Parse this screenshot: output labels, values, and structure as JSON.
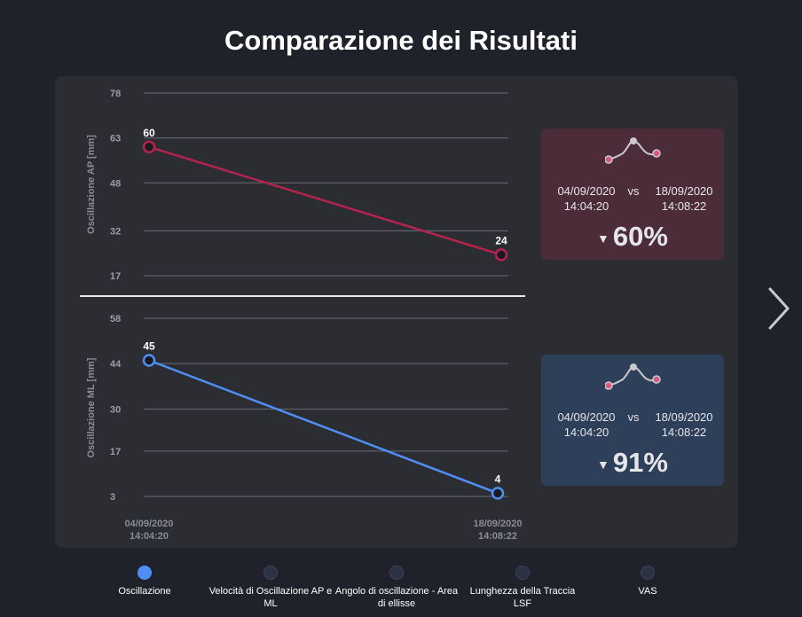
{
  "title": "Comparazione dei Risultati",
  "chart_data": [
    {
      "type": "line",
      "ylabel": "Oscillazione AP [mm]",
      "yticks": [
        78,
        63,
        48,
        32,
        17
      ],
      "ylim": [
        17,
        78
      ],
      "x": [
        "04/09/2020 14:04:20",
        "18/09/2020 14:08:22"
      ],
      "values": [
        60,
        24
      ],
      "data_labels": [
        "60",
        "24"
      ],
      "color": "#b5234d",
      "grid": true
    },
    {
      "type": "line",
      "ylabel": "Oscillazione ML [mm]",
      "yticks": [
        58,
        44,
        30,
        17,
        3
      ],
      "ylim": [
        3,
        58
      ],
      "x": [
        "04/09/2020 14:04:20",
        "18/09/2020 14:08:22"
      ],
      "values": [
        45,
        4
      ],
      "data_labels": [
        "45",
        "4"
      ],
      "color": "#4f8ff5",
      "grid": true
    }
  ],
  "xaxis": {
    "start_date": "04/09/2020",
    "start_time": "14:04:20",
    "end_date": "18/09/2020",
    "end_time": "14:08:22"
  },
  "cards": {
    "ap": {
      "date1": "04/09/2020",
      "time1": "14:04:20",
      "vs": "vs",
      "date2": "18/09/2020",
      "time2": "14:08:22",
      "arrow": "▼",
      "percent": "60%",
      "color": "#4d2c3a",
      "dot_color": "#d9587b"
    },
    "ml": {
      "date1": "04/09/2020",
      "time1": "14:04:20",
      "vs": "vs",
      "date2": "18/09/2020",
      "time2": "14:08:22",
      "arrow": "▼",
      "percent": "91%",
      "color": "#2e3f59",
      "dot_color": "#d9587b"
    }
  },
  "next_icon": "chevron-right-icon",
  "nav": [
    {
      "label": "Oscillazione",
      "active": true
    },
    {
      "label": "Velocità di Oscillazione AP e ML",
      "active": false
    },
    {
      "label": "Angolo di oscillazione - Area di ellisse",
      "active": false
    },
    {
      "label": "Lunghezza della Traccia LSF",
      "active": false
    },
    {
      "label": "VAS",
      "active": false
    }
  ]
}
